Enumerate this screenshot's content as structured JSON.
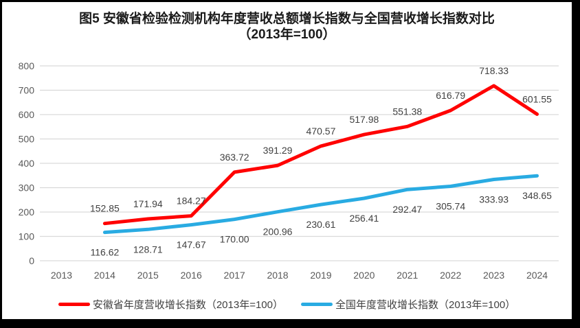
{
  "title": {
    "line1": "图5  安徽省检验检测机构年度营收总额增长指数与全国营收增长指数对比",
    "line2": "（2013年=100）"
  },
  "chart_data": {
    "type": "line",
    "title": "图5 安徽省检验检测机构年度营收总额增长指数与全国营收增长指数对比（2013年=100）",
    "categories": [
      "2013",
      "2014",
      "2015",
      "2016",
      "2017",
      "2018",
      "2019",
      "2020",
      "2021",
      "2022",
      "2023",
      "2024"
    ],
    "series": [
      {
        "name": "安徽省年度营收增长指数（2013年=100）",
        "color": "#FF0000",
        "start_category": "2014",
        "label_side": "above",
        "values": [
          152.85,
          171.94,
          184.27,
          363.72,
          391.29,
          470.57,
          517.98,
          551.38,
          616.79,
          718.33,
          601.55
        ],
        "labels": [
          "152.85",
          "171.94",
          "184.27",
          "363.72",
          "391.29",
          "470.57",
          "517.98",
          "551.38",
          "616.79",
          "718.33",
          "601.55"
        ]
      },
      {
        "name": "全国年度营收增长指数（2013年=100）",
        "color": "#29ABE2",
        "start_category": "2014",
        "label_side": "below",
        "values": [
          116.62,
          128.71,
          147.67,
          170.0,
          200.96,
          230.61,
          256.41,
          292.47,
          305.74,
          333.93,
          348.65
        ],
        "labels": [
          "116.62",
          "128.71",
          "147.67",
          "170.00",
          "200.96",
          "230.61",
          "256.41",
          "292.47",
          "305.74",
          "333.93",
          "348.65"
        ]
      }
    ],
    "ylim": [
      0,
      800
    ],
    "ytick_step": 100,
    "yticks": [
      "0",
      "100",
      "200",
      "300",
      "400",
      "500",
      "600",
      "700",
      "800"
    ],
    "grid": true,
    "legend_position": "bottom",
    "colors": {
      "gridline": "#D9D9D9",
      "axis_label": "#595959",
      "data_label": "#404040",
      "background": "#FFFFFF",
      "frame_border": "#000000"
    }
  },
  "legend": {
    "items": [
      {
        "label": "安徽省年度营收增长指数（2013年=100）"
      },
      {
        "label": "全国年度营收增长指数（2013年=100）"
      }
    ]
  }
}
